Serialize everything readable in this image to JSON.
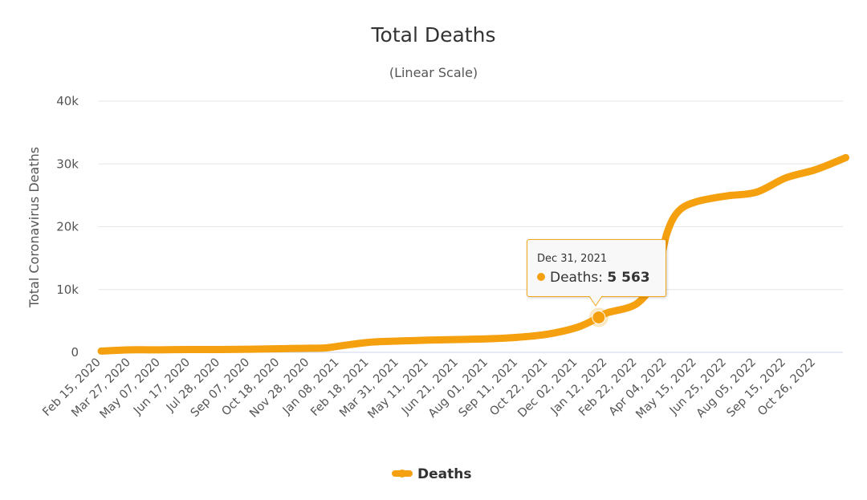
{
  "chart_data": {
    "type": "line",
    "title": "Total Deaths",
    "subtitle": "(Linear Scale)",
    "xlabel": "",
    "ylabel": "Total Coronavirus Deaths",
    "ylim": [
      0,
      40000
    ],
    "y_ticks": [
      0,
      10000,
      20000,
      30000,
      40000
    ],
    "y_tick_labels": [
      "0",
      "10k",
      "20k",
      "30k",
      "40k"
    ],
    "grid": true,
    "x_tick_labels": [
      "Feb 15, 2020",
      "Mar 27, 2020",
      "May 07, 2020",
      "Jun 17, 2020",
      "Jul 28, 2020",
      "Sep 07, 2020",
      "Oct 18, 2020",
      "Nov 28, 2020",
      "Jan 08, 2021",
      "Feb 18, 2021",
      "Mar 31, 2021",
      "May 11, 2021",
      "Jun 21, 2021",
      "Aug 01, 2021",
      "Sep 11, 2021",
      "Oct 22, 2021",
      "Dec 02, 2021",
      "Jan 12, 2022",
      "Feb 22, 2022",
      "Apr 04, 2022",
      "May 15, 2022",
      "Jun 25, 2022",
      "Aug 05, 2022",
      "Sep 15, 2022",
      "Oct 26, 2022"
    ],
    "legend": {
      "position": "bottom",
      "entries": [
        "Deaths"
      ]
    },
    "series": [
      {
        "name": "Deaths",
        "color": "#f5a00f",
        "x": [
          "2020-02-15",
          "2020-03-27",
          "2020-05-07",
          "2020-06-17",
          "2020-07-28",
          "2020-09-07",
          "2020-10-18",
          "2020-11-28",
          "2020-12-20",
          "2021-01-08",
          "2021-02-18",
          "2021-03-31",
          "2021-05-11",
          "2021-06-21",
          "2021-08-01",
          "2021-09-11",
          "2021-10-22",
          "2021-12-02",
          "2021-12-31",
          "2022-01-12",
          "2022-02-22",
          "2022-03-20",
          "2022-04-04",
          "2022-04-20",
          "2022-05-15",
          "2022-06-25",
          "2022-08-05",
          "2022-09-15",
          "2022-10-26",
          "2022-12-06"
        ],
        "y": [
          200,
          400,
          400,
          450,
          450,
          500,
          580,
          650,
          700,
          1000,
          1600,
          1800,
          1950,
          2050,
          2150,
          2400,
          2900,
          4000,
          5563,
          6300,
          7800,
          12000,
          19000,
          22500,
          24000,
          24900,
          25500,
          27800,
          29100,
          31000
        ]
      }
    ],
    "tooltip": {
      "date": "Dec 31, 2021",
      "label": "Deaths:",
      "value": "5 563"
    }
  }
}
